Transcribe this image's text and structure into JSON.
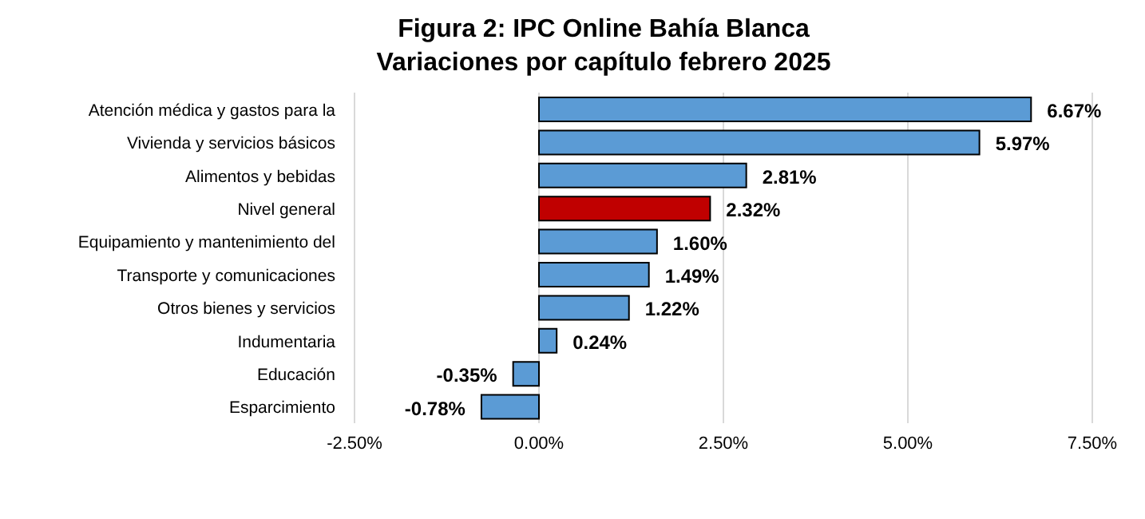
{
  "chart_data": {
    "type": "bar",
    "orientation": "horizontal",
    "title": "Figura 2: IPC Online Bahía Blanca",
    "subtitle": "Variaciones por capítulo febrero 2025",
    "categories": [
      "Atención médica y gastos para la",
      "Vivienda y servicios básicos",
      "Alimentos y bebidas",
      "Nivel general",
      "Equipamiento y mantenimiento del",
      "Transporte y comunicaciones",
      "Otros bienes y servicios",
      "Indumentaria",
      "Educación",
      "Esparcimiento"
    ],
    "values": [
      6.67,
      5.97,
      2.81,
      2.32,
      1.6,
      1.49,
      1.22,
      0.24,
      -0.35,
      -0.78
    ],
    "colors": [
      "#5b9bd5",
      "#5b9bd5",
      "#5b9bd5",
      "#c00000",
      "#5b9bd5",
      "#5b9bd5",
      "#5b9bd5",
      "#5b9bd5",
      "#5b9bd5",
      "#5b9bd5"
    ],
    "value_labels": [
      "6.67%",
      "5.97%",
      "2.81%",
      "2.32%",
      "1.60%",
      "1.49%",
      "1.22%",
      "0.24%",
      "-0.35%",
      "-0.78%"
    ],
    "xlim": [
      -2.5,
      7.5
    ],
    "xticks": [
      {
        "value": -2.5,
        "label": "-2.50%"
      },
      {
        "value": 0,
        "label": "0.00%"
      },
      {
        "value": 2.5,
        "label": "2.50%"
      },
      {
        "value": 5,
        "label": "5.00%"
      },
      {
        "value": 7.5,
        "label": "7.50%"
      }
    ],
    "grid": "x"
  }
}
